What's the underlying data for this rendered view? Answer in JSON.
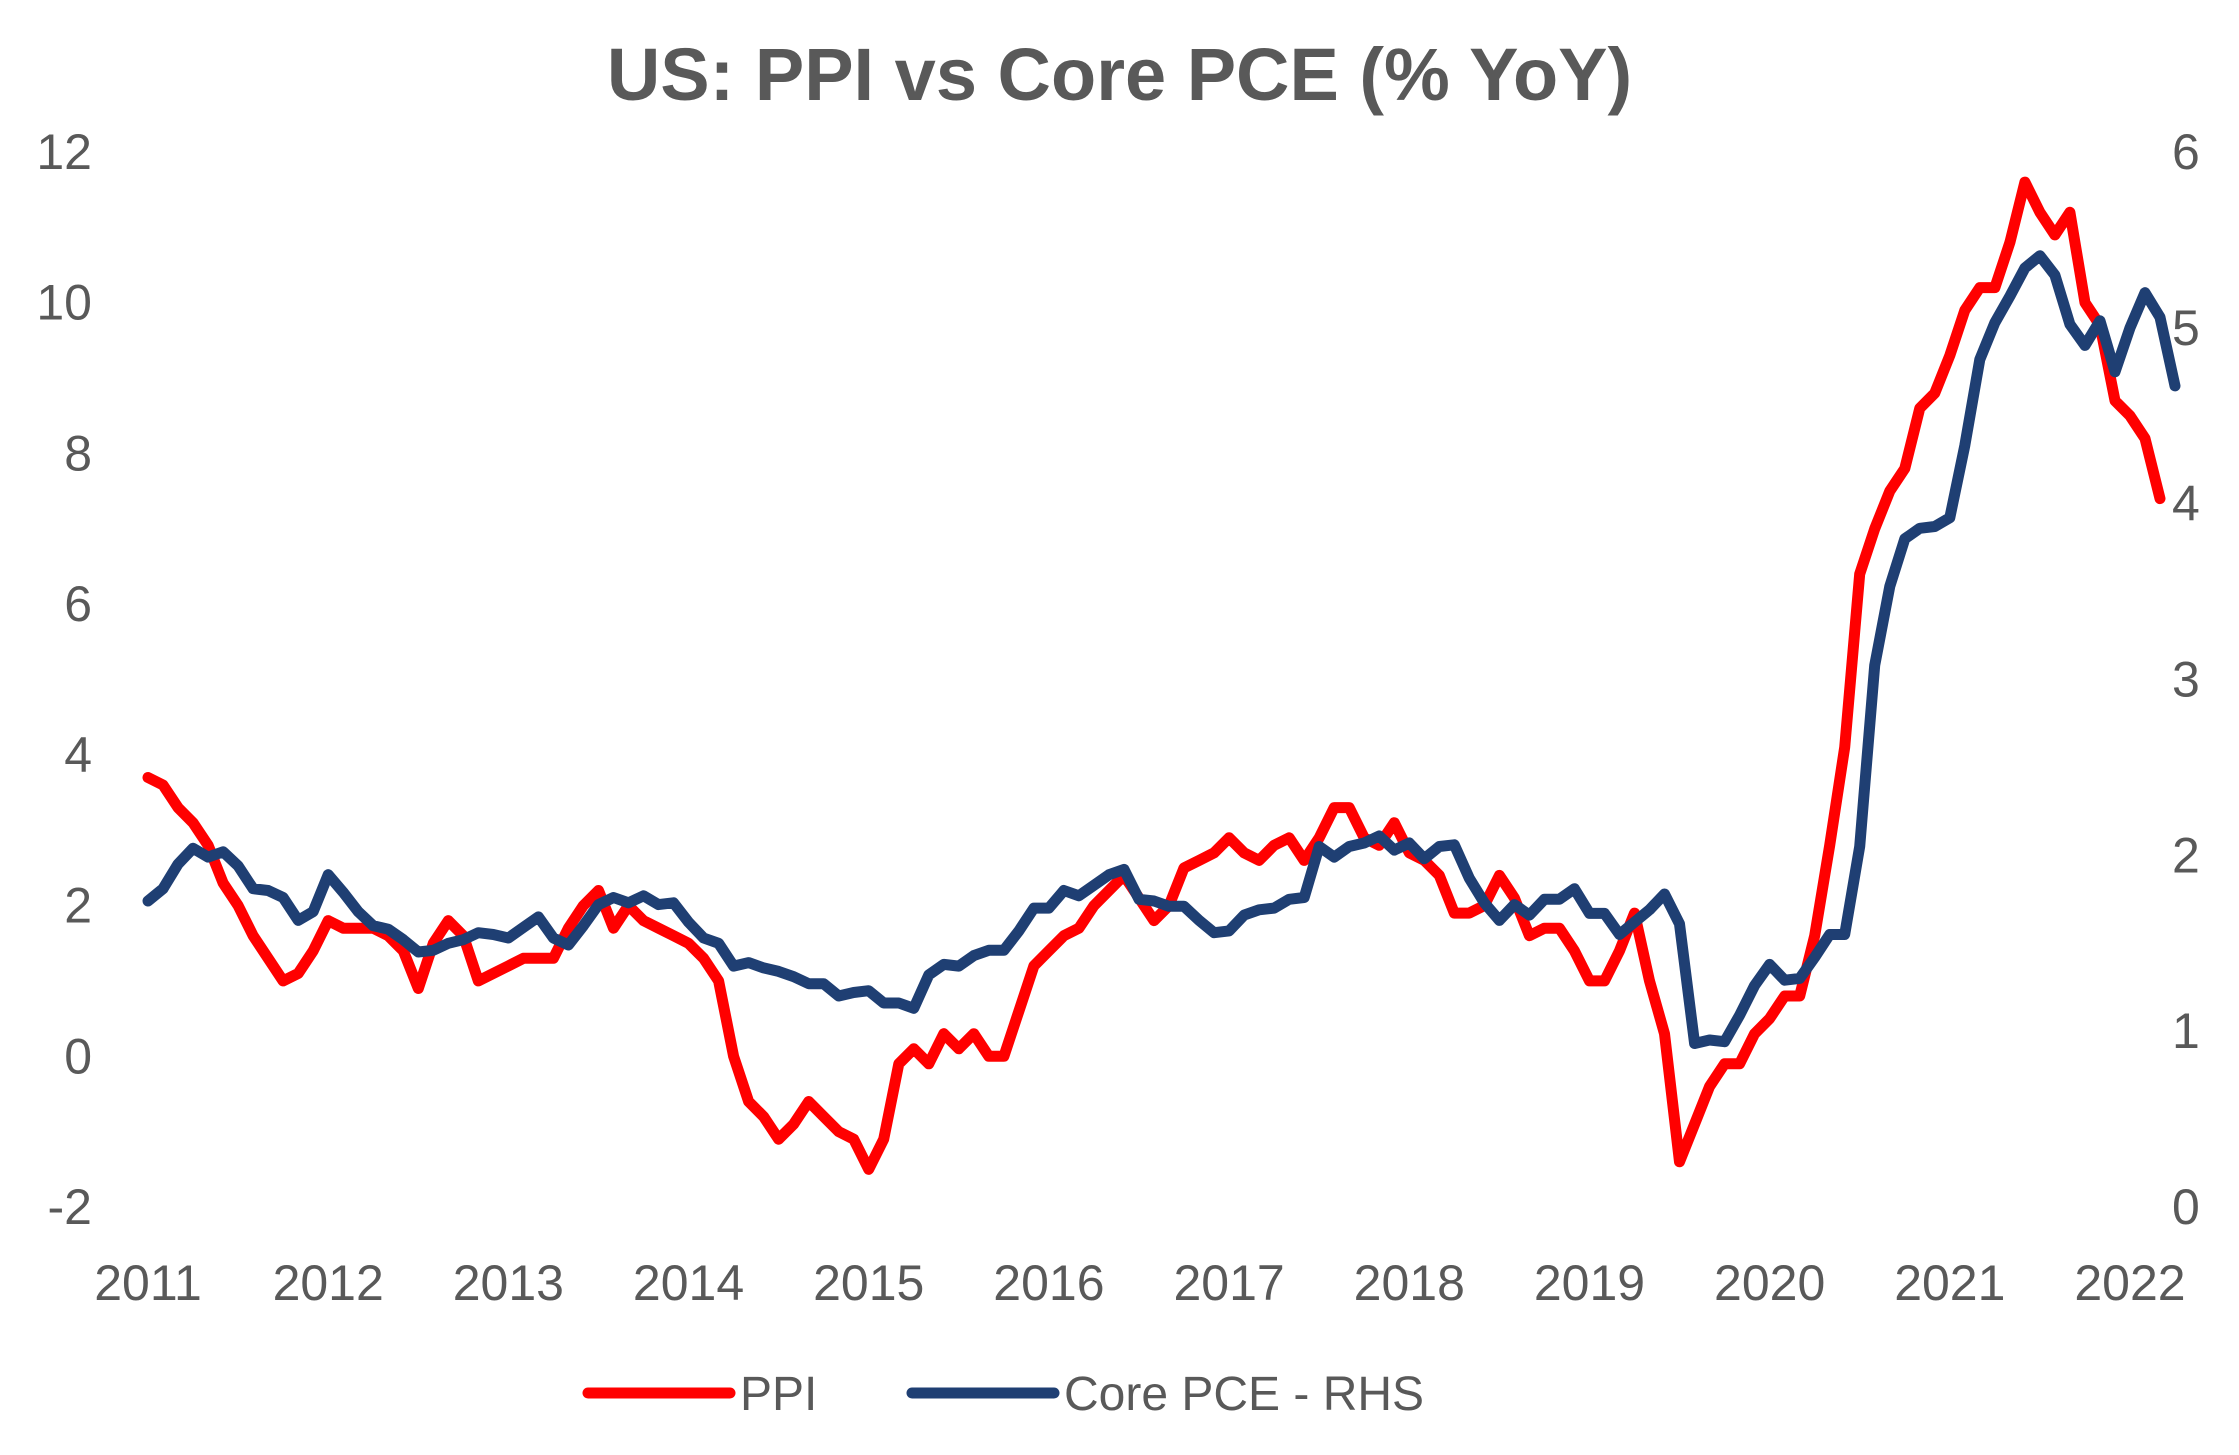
{
  "chart_data": {
    "type": "line",
    "title": "US: PPI vs Core PCE (% YoY)",
    "x_ticks": [
      "2011",
      "2012",
      "2013",
      "2014",
      "2015",
      "2016",
      "2017",
      "2018",
      "2019",
      "2020",
      "2021",
      "2022"
    ],
    "y_left": {
      "min": -2,
      "max": 12,
      "ticks": [
        "-2",
        "0",
        "2",
        "4",
        "6",
        "8",
        "10",
        "12"
      ]
    },
    "y_right": {
      "min": 0,
      "max": 6,
      "ticks": [
        "0",
        "1",
        "2",
        "3",
        "4",
        "5",
        "6"
      ]
    },
    "grid": false,
    "legend_position": "bottom",
    "series": [
      {
        "name": "PPI",
        "axis": "left",
        "color": "#ff0000",
        "start": "2011-01",
        "values": [
          3.7,
          3.6,
          3.3,
          3.1,
          2.8,
          2.3,
          2.0,
          1.6,
          1.3,
          1.0,
          1.1,
          1.4,
          1.8,
          1.7,
          1.7,
          1.7,
          1.6,
          1.4,
          0.9,
          1.5,
          1.8,
          1.6,
          1.0,
          1.1,
          1.2,
          1.3,
          1.3,
          1.3,
          1.7,
          2.0,
          2.2,
          1.7,
          2.0,
          1.8,
          1.7,
          1.6,
          1.5,
          1.3,
          1.0,
          0.0,
          -0.6,
          -0.8,
          -1.1,
          -0.9,
          -0.6,
          -0.8,
          -1.0,
          -1.1,
          -1.5,
          -1.1,
          -0.1,
          0.1,
          -0.1,
          0.3,
          0.1,
          0.3,
          0.0,
          0.0,
          0.6,
          1.2,
          1.4,
          1.6,
          1.7,
          2.0,
          2.2,
          2.4,
          2.1,
          1.8,
          2.0,
          2.5,
          2.6,
          2.7,
          2.9,
          2.7,
          2.6,
          2.8,
          2.9,
          2.6,
          2.9,
          3.3,
          3.3,
          2.9,
          2.8,
          3.1,
          2.7,
          2.6,
          2.4,
          1.9,
          1.9,
          2.0,
          2.4,
          2.1,
          1.6,
          1.7,
          1.7,
          1.4,
          1.0,
          1.0,
          1.4,
          1.9,
          1.0,
          0.3,
          -1.4,
          -0.9,
          -0.4,
          -0.1,
          -0.1,
          0.3,
          0.5,
          0.8,
          0.8,
          1.6,
          2.8,
          4.1,
          6.4,
          7.0,
          7.5,
          7.8,
          8.6,
          8.8,
          9.3,
          9.9,
          10.2,
          10.2,
          10.8,
          11.6,
          11.2,
          10.9,
          11.2,
          10.0,
          9.7,
          8.7,
          8.5,
          8.2,
          7.4
        ]
      },
      {
        "name": "Core PCE - RHS",
        "axis": "right",
        "color": "#1f3f73",
        "start": "2011-01",
        "values": [
          1.74,
          1.81,
          1.95,
          2.04,
          1.99,
          2.02,
          1.94,
          1.81,
          1.8,
          1.76,
          1.63,
          1.68,
          1.89,
          1.79,
          1.68,
          1.6,
          1.58,
          1.52,
          1.45,
          1.46,
          1.5,
          1.52,
          1.56,
          1.55,
          1.53,
          1.59,
          1.65,
          1.53,
          1.49,
          1.6,
          1.72,
          1.76,
          1.73,
          1.77,
          1.72,
          1.73,
          1.62,
          1.53,
          1.5,
          1.37,
          1.39,
          1.36,
          1.34,
          1.31,
          1.27,
          1.27,
          1.2,
          1.22,
          1.23,
          1.16,
          1.16,
          1.13,
          1.32,
          1.38,
          1.37,
          1.43,
          1.46,
          1.46,
          1.57,
          1.7,
          1.7,
          1.8,
          1.77,
          1.83,
          1.89,
          1.92,
          1.75,
          1.74,
          1.71,
          1.71,
          1.63,
          1.56,
          1.57,
          1.66,
          1.69,
          1.7,
          1.75,
          1.76,
          2.05,
          1.99,
          2.05,
          2.07,
          2.11,
          2.03,
          2.07,
          1.98,
          2.05,
          2.06,
          1.87,
          1.73,
          1.63,
          1.72,
          1.66,
          1.75,
          1.75,
          1.81,
          1.67,
          1.67,
          1.55,
          1.62,
          1.69,
          1.78,
          1.61,
          0.93,
          0.95,
          0.94,
          1.09,
          1.26,
          1.38,
          1.29,
          1.3,
          1.42,
          1.55,
          1.55,
          2.05,
          3.08,
          3.53,
          3.8,
          3.86,
          3.87,
          3.92,
          4.33,
          4.82,
          5.03,
          5.18,
          5.34,
          5.41,
          5.3,
          5.02,
          4.9,
          5.04,
          4.75,
          5.0,
          5.2,
          5.06,
          4.67
        ]
      }
    ]
  }
}
